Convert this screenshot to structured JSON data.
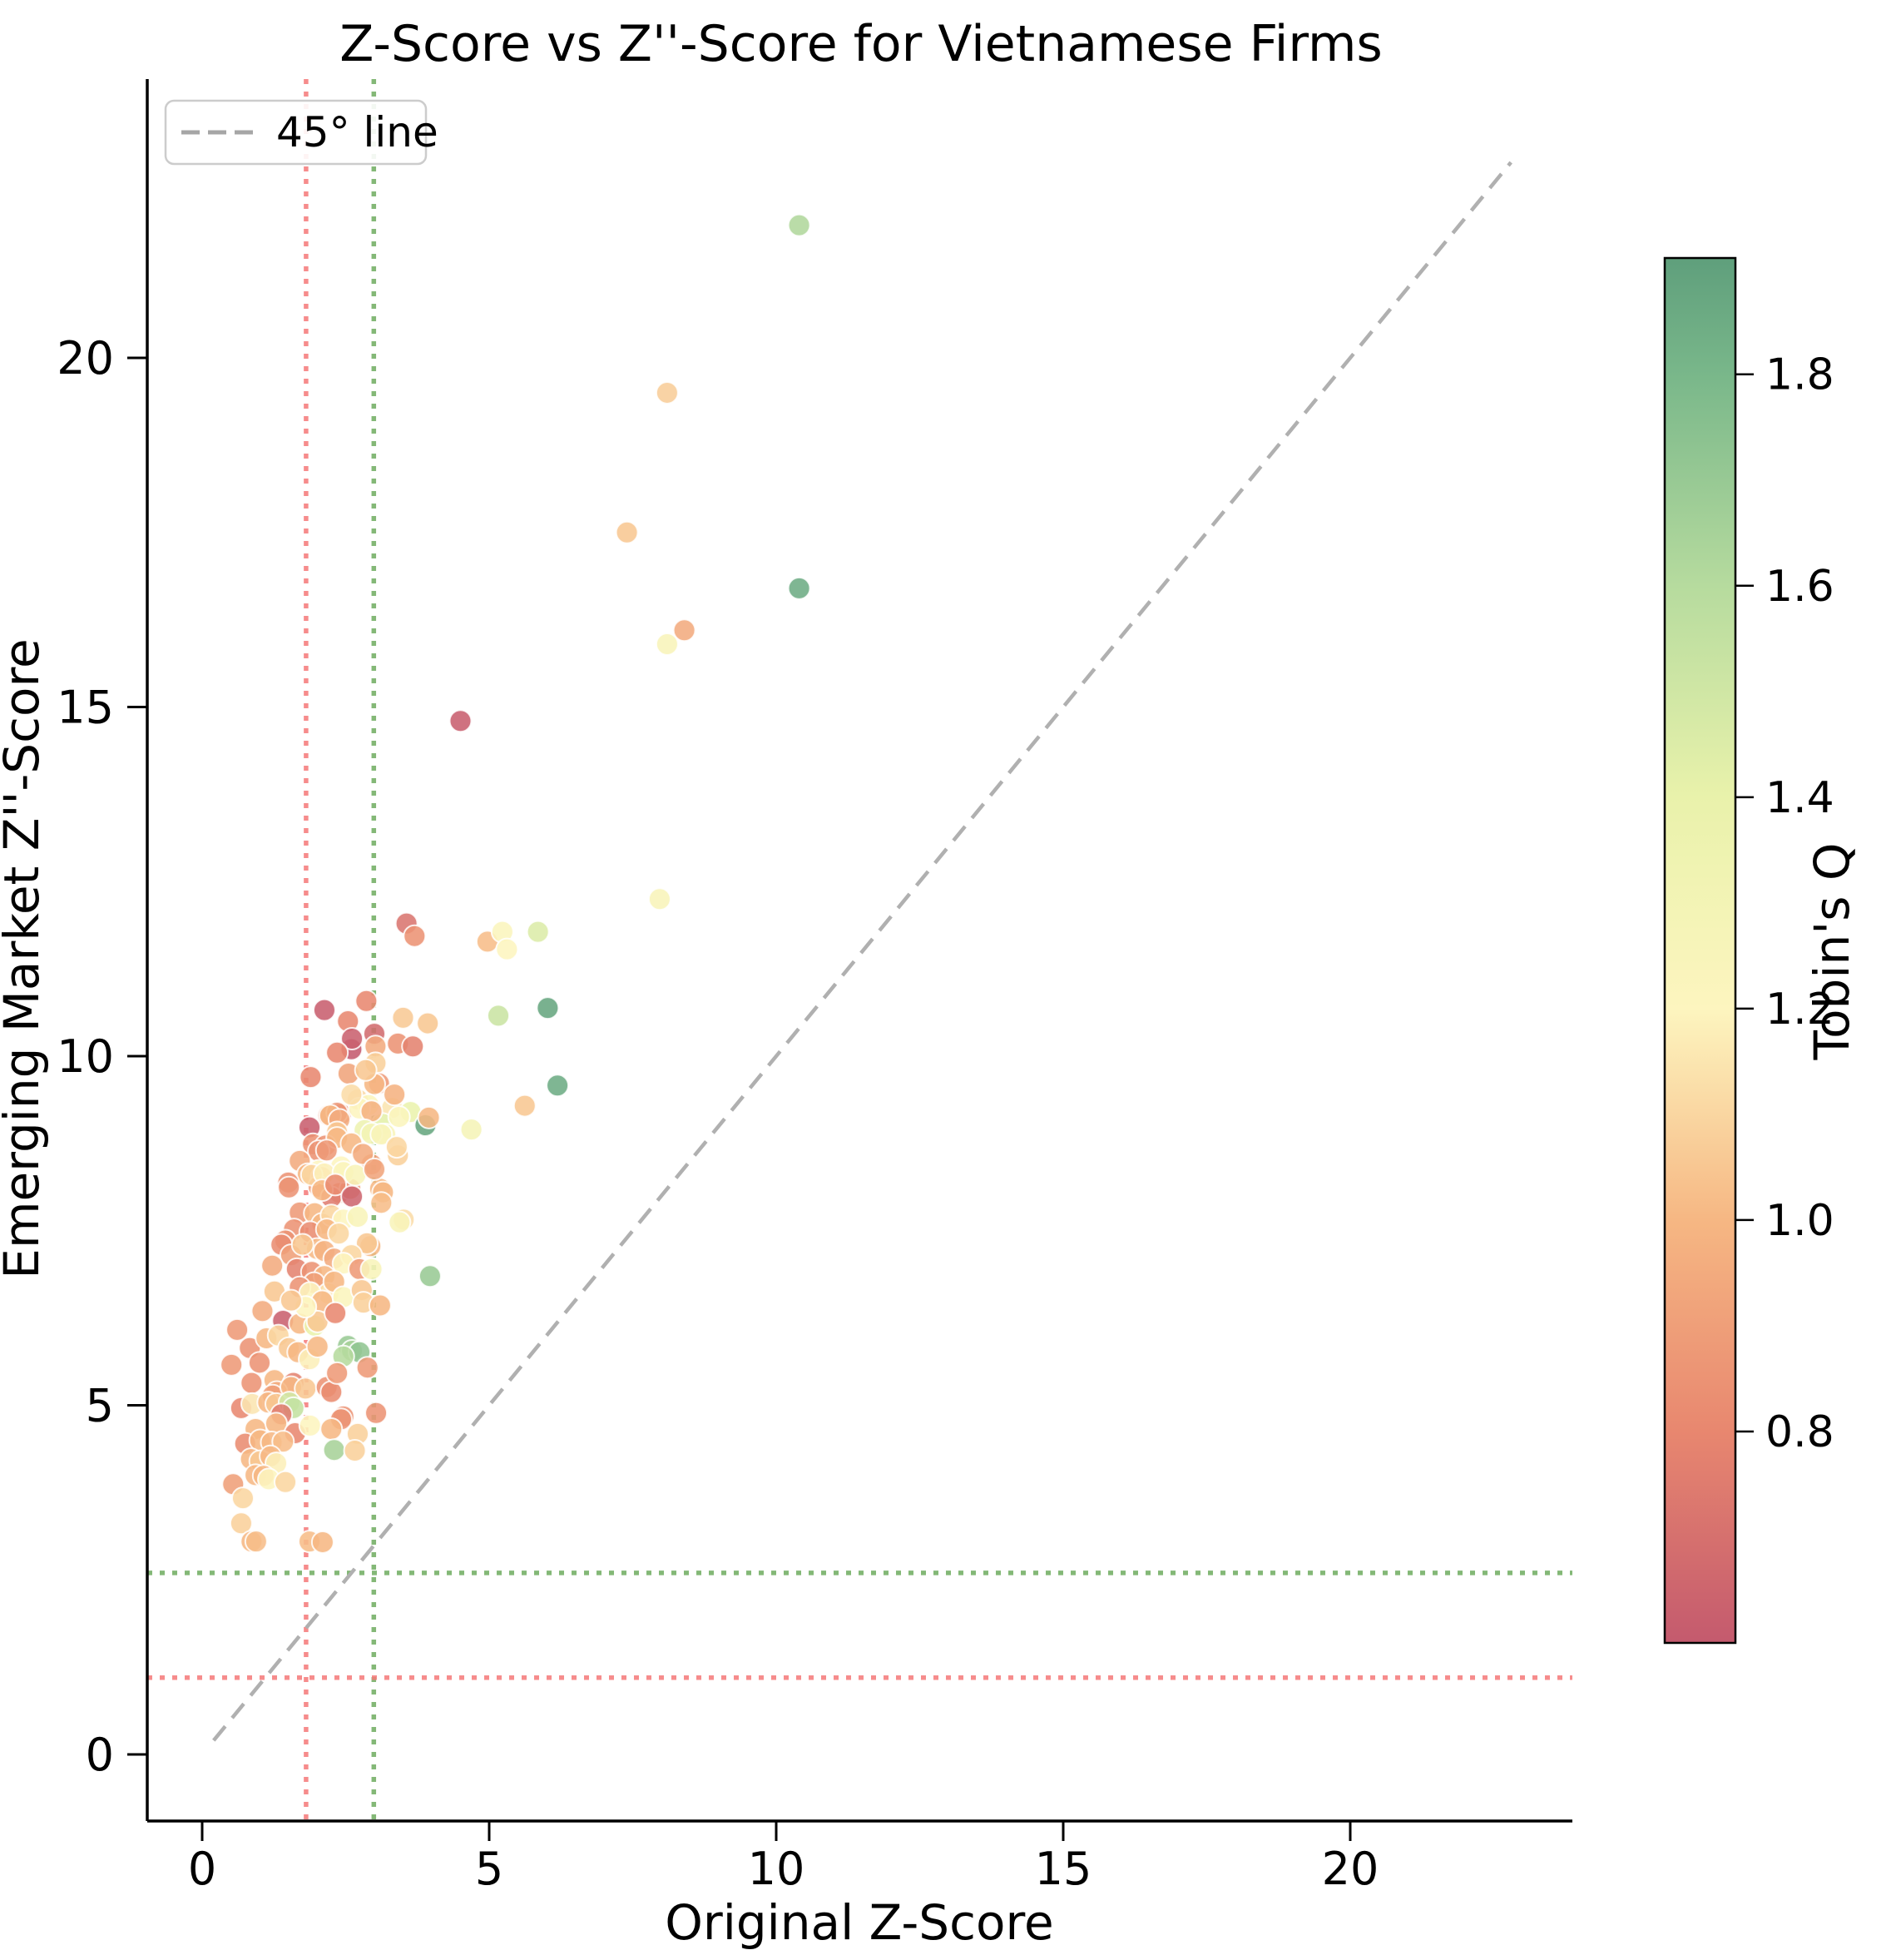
{
  "chart_data": {
    "type": "scatter",
    "title": "Z-Score vs Z''-Score for Vietnamese Firms",
    "xlabel": "Original Z-Score",
    "ylabel": "Emerging Market Z''-Score",
    "xticks": [
      0,
      5,
      10,
      15,
      20
    ],
    "yticks": [
      0,
      5,
      10,
      15,
      20
    ],
    "xlim": [
      -1.0,
      23.9
    ],
    "ylim": [
      -0.95,
      23.95
    ],
    "grid": false,
    "legend": {
      "entries": [
        "45° line"
      ],
      "position": "upper left"
    },
    "identity_line": {
      "from": 0.2,
      "to": 22.8,
      "style": "dashed",
      "color": "#b0b0b0"
    },
    "threshold_lines": {
      "vertical": [
        {
          "x": 1.81,
          "color": "#f47878",
          "style": "dotted"
        },
        {
          "x": 2.99,
          "color": "#6eac5f",
          "style": "dotted"
        }
      ],
      "horizontal": [
        {
          "y": 1.1,
          "color": "#f47878",
          "style": "dotted"
        },
        {
          "y": 2.6,
          "color": "#6eac5f",
          "style": "dotted"
        }
      ]
    },
    "colorbar": {
      "label": "Tobin's Q",
      "vmin": 0.6,
      "vmax": 1.91,
      "ticks": [
        0.8,
        1.0,
        1.2,
        1.4,
        1.6,
        1.8
      ],
      "gradient_stops": [
        {
          "q": 0.6,
          "color": "#c45a6e"
        },
        {
          "q": 0.8,
          "color": "#e8876f"
        },
        {
          "q": 1.0,
          "color": "#f6b783"
        },
        {
          "q": 1.2,
          "color": "#fdf5bf"
        },
        {
          "q": 1.4,
          "color": "#e9f2ab"
        },
        {
          "q": 1.6,
          "color": "#b6db9e"
        },
        {
          "q": 1.8,
          "color": "#79b78a"
        },
        {
          "q": 1.91,
          "color": "#5f9f7c"
        }
      ]
    },
    "points_format": [
      "original_z_score",
      "emerging_market_z2_score",
      "tobins_q"
    ],
    "points": [
      [
        10.4,
        21.9,
        1.62
      ],
      [
        8.1,
        19.5,
        1.07
      ],
      [
        7.4,
        17.5,
        1.05
      ],
      [
        10.4,
        16.7,
        1.85
      ],
      [
        8.4,
        16.1,
        0.95
      ],
      [
        8.1,
        15.9,
        1.25
      ],
      [
        4.5,
        14.8,
        0.62
      ],
      [
        7.97,
        12.25,
        1.25
      ],
      [
        3.56,
        11.9,
        0.72
      ],
      [
        3.7,
        11.72,
        0.85
      ],
      [
        4.97,
        11.64,
        1.02
      ],
      [
        5.23,
        11.78,
        1.22
      ],
      [
        5.31,
        11.53,
        1.2
      ],
      [
        5.85,
        11.78,
        1.45
      ],
      [
        2.13,
        10.66,
        0.62
      ],
      [
        2.86,
        10.79,
        0.8
      ],
      [
        2.54,
        10.5,
        0.8
      ],
      [
        3.5,
        10.55,
        1.06
      ],
      [
        3.93,
        10.47,
        1.05
      ],
      [
        5.16,
        10.58,
        1.52
      ],
      [
        6.02,
        10.69,
        1.88
      ],
      [
        2.6,
        10.1,
        0.6
      ],
      [
        2.61,
        10.25,
        0.63
      ],
      [
        3.0,
        10.32,
        0.68
      ],
      [
        3.02,
        10.14,
        0.95
      ],
      [
        3.41,
        10.18,
        0.85
      ],
      [
        3.67,
        10.14,
        0.78
      ],
      [
        2.35,
        10.05,
        0.8
      ],
      [
        3.02,
        9.9,
        1.08
      ],
      [
        1.89,
        9.7,
        0.8
      ],
      [
        3.08,
        9.61,
        0.88
      ],
      [
        2.71,
        9.38,
        1.1
      ],
      [
        2.2,
        9.15,
        0.85
      ],
      [
        2.42,
        9.17,
        0.84
      ],
      [
        2.35,
        9.19,
        0.86
      ],
      [
        3.31,
        9.26,
        1.15
      ],
      [
        3.63,
        9.2,
        1.38
      ],
      [
        3.89,
        9.01,
        1.88
      ],
      [
        3.95,
        9.12,
        1.0
      ],
      [
        4.69,
        8.95,
        1.28
      ],
      [
        5.62,
        9.29,
        1.05
      ],
      [
        6.19,
        9.58,
        1.85
      ],
      [
        3.0,
        9.6,
        1.0
      ],
      [
        2.9,
        9.3,
        1.22
      ],
      [
        3.14,
        9.03,
        1.42
      ],
      [
        3.19,
        8.88,
        1.25
      ],
      [
        2.23,
        9.15,
        1.0
      ],
      [
        2.39,
        9.09,
        0.95
      ],
      [
        2.74,
        9.25,
        1.2
      ],
      [
        2.95,
        9.21,
        0.98
      ],
      [
        3.43,
        9.13,
        1.22
      ],
      [
        2.83,
        8.94,
        1.35
      ],
      [
        2.55,
        9.75,
        0.92
      ],
      [
        2.85,
        9.8,
        1.05
      ],
      [
        2.6,
        9.45,
        1.12
      ],
      [
        3.35,
        9.45,
        0.98
      ],
      [
        1.87,
        8.98,
        0.62
      ],
      [
        2.35,
        8.91,
        1.05
      ],
      [
        1.93,
        8.74,
        0.85
      ],
      [
        2.15,
        8.72,
        0.85
      ],
      [
        2.95,
        8.89,
        1.3
      ],
      [
        3.12,
        8.88,
        1.25
      ],
      [
        2.35,
        8.83,
        1.0
      ],
      [
        2.03,
        8.64,
        0.85
      ],
      [
        2.17,
        8.65,
        0.88
      ],
      [
        3.41,
        8.58,
        1.08
      ],
      [
        3.39,
        8.7,
        1.1
      ],
      [
        2.95,
        8.45,
        0.9
      ],
      [
        2.6,
        8.75,
        1.0
      ],
      [
        2.8,
        8.6,
        0.95
      ],
      [
        1.7,
        8.5,
        0.95
      ],
      [
        2.03,
        8.36,
        1.2
      ],
      [
        2.42,
        8.42,
        1.2
      ],
      [
        1.84,
        8.31,
        1.0
      ],
      [
        2.08,
        8.27,
        1.05
      ],
      [
        2.03,
        8.13,
        0.88
      ],
      [
        2.39,
        8.04,
        0.85
      ],
      [
        2.58,
        8.1,
        0.85
      ],
      [
        1.5,
        8.19,
        0.85
      ],
      [
        2.25,
        7.98,
        0.75
      ],
      [
        3.1,
        8.1,
        1.0
      ],
      [
        1.91,
        8.3,
        1.1
      ],
      [
        2.13,
        8.32,
        1.18
      ],
      [
        2.46,
        8.34,
        1.22
      ],
      [
        2.67,
        8.3,
        1.25
      ],
      [
        3.0,
        8.38,
        0.92
      ],
      [
        1.51,
        8.12,
        0.85
      ],
      [
        2.09,
        8.08,
        1.0
      ],
      [
        2.32,
        8.16,
        0.82
      ],
      [
        2.61,
        7.99,
        0.65
      ],
      [
        3.15,
        8.05,
        1.0
      ],
      [
        3.12,
        7.9,
        1.02
      ],
      [
        1.7,
        7.76,
        0.88
      ],
      [
        1.96,
        7.75,
        1.0
      ],
      [
        2.09,
        7.6,
        1.0
      ],
      [
        2.25,
        7.72,
        1.1
      ],
      [
        2.46,
        7.66,
        1.2
      ],
      [
        2.71,
        7.7,
        1.25
      ],
      [
        1.6,
        7.52,
        0.85
      ],
      [
        1.88,
        7.48,
        0.82
      ],
      [
        2.17,
        7.52,
        1.0
      ],
      [
        2.38,
        7.46,
        1.1
      ],
      [
        1.45,
        7.36,
        0.85
      ],
      [
        1.38,
        7.3,
        0.82
      ],
      [
        2.0,
        7.24,
        1.0
      ],
      [
        2.13,
        7.21,
        0.98
      ],
      [
        2.93,
        7.28,
        1.0
      ],
      [
        3.51,
        7.66,
        1.12
      ],
      [
        3.44,
        7.62,
        1.25
      ],
      [
        2.87,
        7.32,
        1.05
      ],
      [
        1.55,
        7.15,
        0.9
      ],
      [
        1.75,
        7.3,
        1.05
      ],
      [
        2.3,
        7.1,
        0.95
      ],
      [
        2.6,
        7.15,
        1.1
      ],
      [
        1.22,
        7.0,
        0.95
      ],
      [
        1.65,
        6.95,
        0.78
      ],
      [
        1.91,
        6.91,
        0.85
      ],
      [
        2.13,
        6.85,
        1.0
      ],
      [
        2.46,
        7.03,
        1.2
      ],
      [
        2.74,
        6.95,
        0.88
      ],
      [
        2.95,
        6.95,
        1.25
      ],
      [
        1.95,
        6.75,
        0.9
      ],
      [
        2.2,
        6.6,
        1.15
      ],
      [
        1.26,
        6.63,
        1.05
      ],
      [
        1.7,
        6.69,
        0.85
      ],
      [
        1.88,
        6.61,
        1.2
      ],
      [
        2.09,
        6.49,
        1.0
      ],
      [
        2.3,
        6.77,
        1.0
      ],
      [
        2.46,
        6.55,
        1.22
      ],
      [
        2.78,
        6.65,
        1.05
      ],
      [
        2.81,
        6.47,
        1.08
      ],
      [
        3.1,
        6.43,
        1.0
      ],
      [
        1.41,
        6.21,
        0.63
      ],
      [
        1.7,
        6.17,
        1.0
      ],
      [
        1.96,
        6.14,
        1.4
      ],
      [
        2.01,
        6.2,
        1.05
      ],
      [
        2.32,
        6.32,
        0.8
      ],
      [
        1.8,
        6.41,
        1.2
      ],
      [
        3.97,
        6.85,
        1.7
      ],
      [
        1.05,
        6.35,
        0.95
      ],
      [
        1.55,
        6.5,
        1.05
      ],
      [
        0.61,
        6.08,
        0.88
      ],
      [
        0.83,
        5.82,
        0.85
      ],
      [
        1.12,
        5.96,
        1.0
      ],
      [
        1.33,
        6.0,
        1.1
      ],
      [
        1.51,
        5.82,
        1.05
      ],
      [
        1.67,
        5.76,
        1.0
      ],
      [
        1.87,
        5.66,
        1.18
      ],
      [
        2.01,
        5.84,
        1.0
      ],
      [
        2.54,
        5.85,
        1.7
      ],
      [
        2.61,
        5.78,
        1.65
      ],
      [
        2.74,
        5.76,
        1.72
      ],
      [
        2.46,
        5.7,
        1.6
      ],
      [
        1.0,
        5.61,
        0.85
      ],
      [
        2.88,
        5.54,
        0.88
      ],
      [
        0.51,
        5.58,
        0.88
      ],
      [
        0.86,
        5.32,
        0.85
      ],
      [
        1.26,
        5.36,
        1.0
      ],
      [
        1.59,
        5.32,
        0.78
      ],
      [
        1.3,
        5.19,
        0.95
      ],
      [
        1.23,
        5.14,
        0.9
      ],
      [
        1.55,
        5.26,
        1.0
      ],
      [
        1.8,
        5.24,
        1.05
      ],
      [
        2.17,
        5.26,
        0.85
      ],
      [
        2.25,
        5.19,
        0.82
      ],
      [
        2.35,
        5.46,
        0.88
      ],
      [
        0.68,
        4.96,
        0.8
      ],
      [
        0.87,
        5.02,
        1.15
      ],
      [
        1.15,
        5.04,
        1.0
      ],
      [
        1.29,
        5.02,
        1.05
      ],
      [
        1.52,
        5.04,
        1.5
      ],
      [
        1.59,
        4.96,
        1.55
      ],
      [
        1.38,
        4.87,
        0.75
      ],
      [
        2.46,
        4.84,
        0.85
      ],
      [
        3.03,
        4.89,
        0.85
      ],
      [
        0.93,
        4.66,
        1.0
      ],
      [
        1.29,
        4.74,
        1.0
      ],
      [
        1.62,
        4.6,
        0.8
      ],
      [
        1.88,
        4.71,
        1.2
      ],
      [
        2.42,
        4.8,
        0.85
      ],
      [
        2.25,
        4.66,
        1.0
      ],
      [
        2.71,
        4.59,
        1.08
      ],
      [
        2.3,
        4.36,
        1.65
      ],
      [
        2.66,
        4.35,
        1.08
      ],
      [
        0.75,
        4.45,
        0.82
      ],
      [
        1.01,
        4.5,
        1.0
      ],
      [
        1.21,
        4.47,
        1.0
      ],
      [
        1.41,
        4.48,
        1.02
      ],
      [
        0.85,
        4.23,
        1.0
      ],
      [
        1.01,
        4.2,
        1.05
      ],
      [
        1.19,
        4.27,
        1.0
      ],
      [
        1.29,
        4.17,
        1.18
      ],
      [
        0.93,
        4.0,
        1.0
      ],
      [
        1.07,
        3.99,
        1.0
      ],
      [
        1.16,
        3.94,
        1.2
      ],
      [
        1.45,
        3.9,
        1.1
      ],
      [
        0.54,
        3.87,
        0.9
      ],
      [
        0.71,
        3.67,
        1.1
      ],
      [
        0.68,
        3.31,
        1.08
      ],
      [
        0.86,
        3.05,
        1.0
      ],
      [
        0.94,
        3.05,
        1.02
      ],
      [
        1.87,
        3.05,
        1.02
      ],
      [
        2.1,
        3.04,
        1.0
      ]
    ]
  }
}
